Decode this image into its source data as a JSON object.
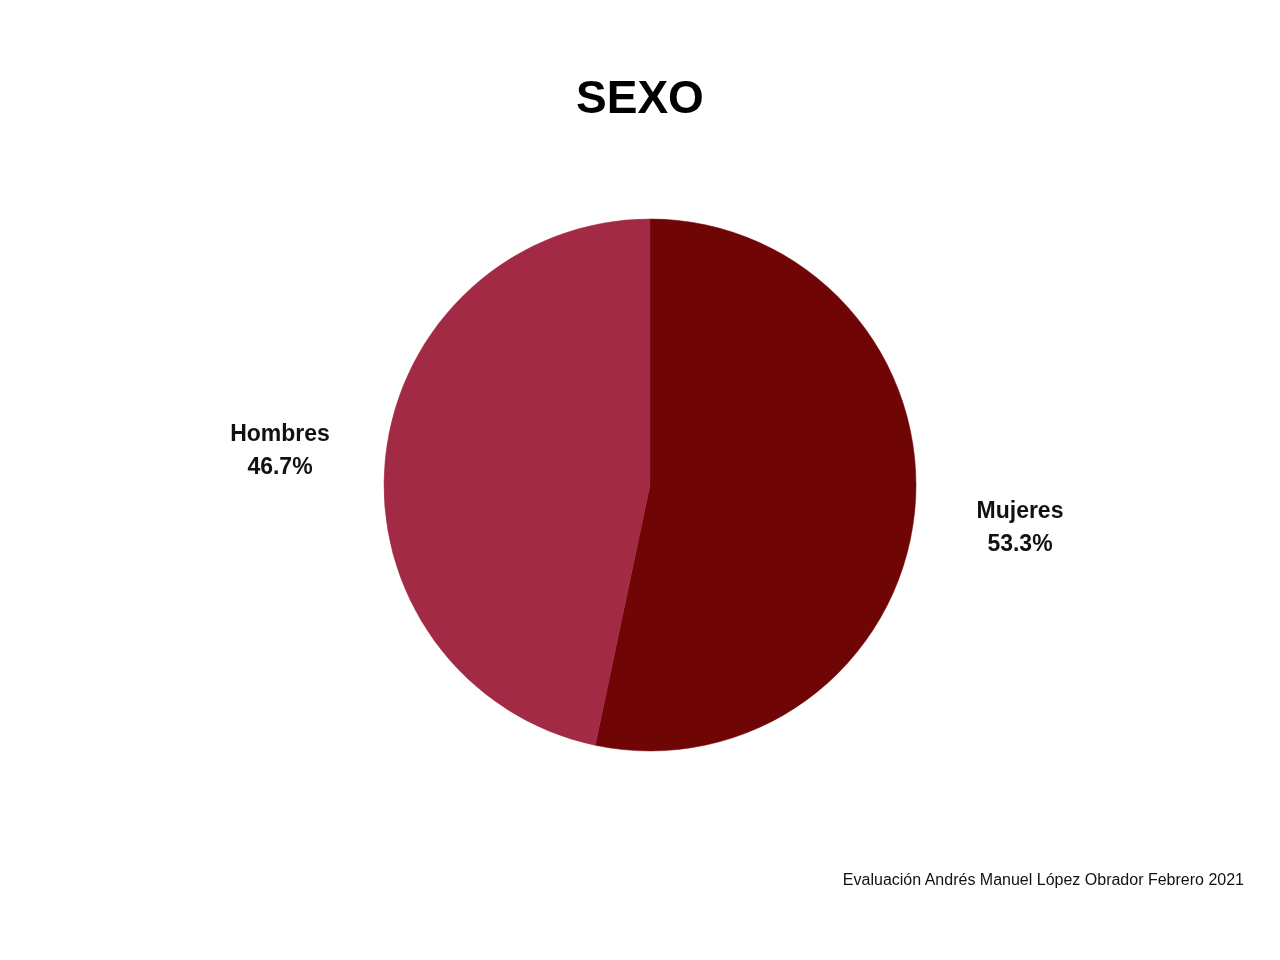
{
  "chart_data": {
    "type": "pie",
    "title": "SEXO",
    "categories": [
      "Mujeres",
      "Hombres"
    ],
    "values": [
      53.3,
      46.7
    ],
    "colors": [
      "#700506",
      "#a22a44"
    ],
    "value_labels": [
      "53.3%",
      "46.7%"
    ],
    "annotations": [
      "Evaluación Andrés Manuel López Obrador Febrero 2021"
    ]
  }
}
